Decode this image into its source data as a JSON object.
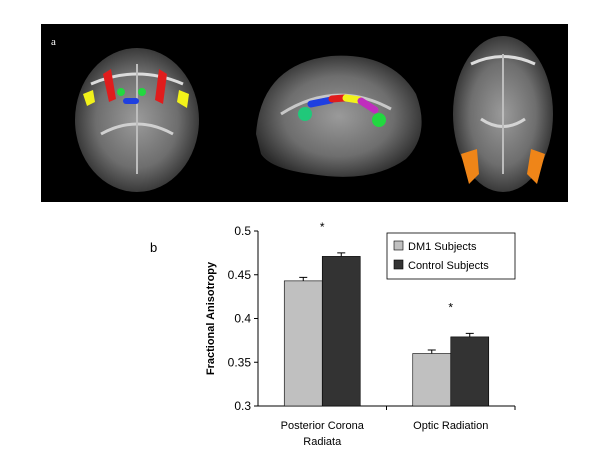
{
  "panel_a": {
    "label": "a",
    "views": [
      "coronal",
      "sagittal",
      "axial"
    ],
    "region_colors": {
      "superior-region": "#e01c1c",
      "lateral-region": "#f2f21a",
      "medial-region": "#22d840",
      "corpus-callosum": "#1f3fe0",
      "callosal-body": "#c02dbd",
      "splenium": "#20c87a",
      "optic-radiation": "#ef8518"
    }
  },
  "panel_b": {
    "label": "b"
  },
  "chart_data": {
    "type": "bar",
    "categories": [
      "Posterior Corona Radiata",
      "Optic Radiation"
    ],
    "category_lines": [
      [
        "Posterior Corona",
        "Radiata"
      ],
      [
        "Optic Radiation"
      ]
    ],
    "series": [
      {
        "name": "DM1 Subjects",
        "values": [
          0.443,
          0.36
        ],
        "errors": [
          0.004,
          0.004
        ],
        "color": "#c0c0c0"
      },
      {
        "name": "Control Subjects",
        "values": [
          0.471,
          0.379
        ],
        "errors": [
          0.004,
          0.004
        ],
        "color": "#333333"
      }
    ],
    "significance": [
      "*",
      "*"
    ],
    "ylabel": "Fractional Anisotropy",
    "xlabel": "",
    "ylim": [
      0.3,
      0.5
    ],
    "yticks": [
      "0.3",
      "0.35",
      "0.4",
      "0.45",
      "0.5"
    ],
    "legend_position": "top-right",
    "grid": false
  }
}
